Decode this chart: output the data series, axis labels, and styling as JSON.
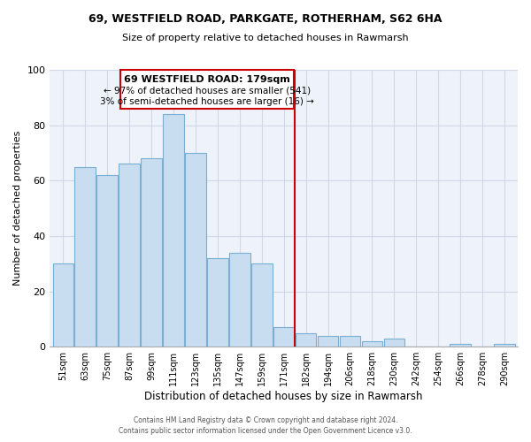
{
  "title": "69, WESTFIELD ROAD, PARKGATE, ROTHERHAM, S62 6HA",
  "subtitle": "Size of property relative to detached houses in Rawmarsh",
  "xlabel": "Distribution of detached houses by size in Rawmarsh",
  "ylabel": "Number of detached properties",
  "bar_labels": [
    "51sqm",
    "63sqm",
    "75sqm",
    "87sqm",
    "99sqm",
    "111sqm",
    "123sqm",
    "135sqm",
    "147sqm",
    "159sqm",
    "171sqm",
    "182sqm",
    "194sqm",
    "206sqm",
    "218sqm",
    "230sqm",
    "242sqm",
    "254sqm",
    "266sqm",
    "278sqm",
    "290sqm"
  ],
  "bar_heights": [
    30,
    65,
    62,
    66,
    68,
    84,
    70,
    32,
    34,
    30,
    7,
    5,
    4,
    4,
    2,
    3,
    0,
    0,
    1,
    0,
    1
  ],
  "bar_color": "#c8ddf0",
  "bar_edge_color": "#7aafd4",
  "vline_color": "#cc0000",
  "annotation_title": "69 WESTFIELD ROAD: 179sqm",
  "annotation_line1": "← 97% of detached houses are smaller (541)",
  "annotation_line2": "3% of semi-detached houses are larger (16) →",
  "annotation_box_color": "#ffffff",
  "annotation_box_edge": "#cc0000",
  "ylim": [
    0,
    100
  ],
  "yticks": [
    0,
    20,
    40,
    60,
    80,
    100
  ],
  "grid_color": "#d0d8e8",
  "background_color": "#eef2fa",
  "footer_line1": "Contains HM Land Registry data © Crown copyright and database right 2024.",
  "footer_line2": "Contains public sector information licensed under the Open Government Licence v3.0."
}
